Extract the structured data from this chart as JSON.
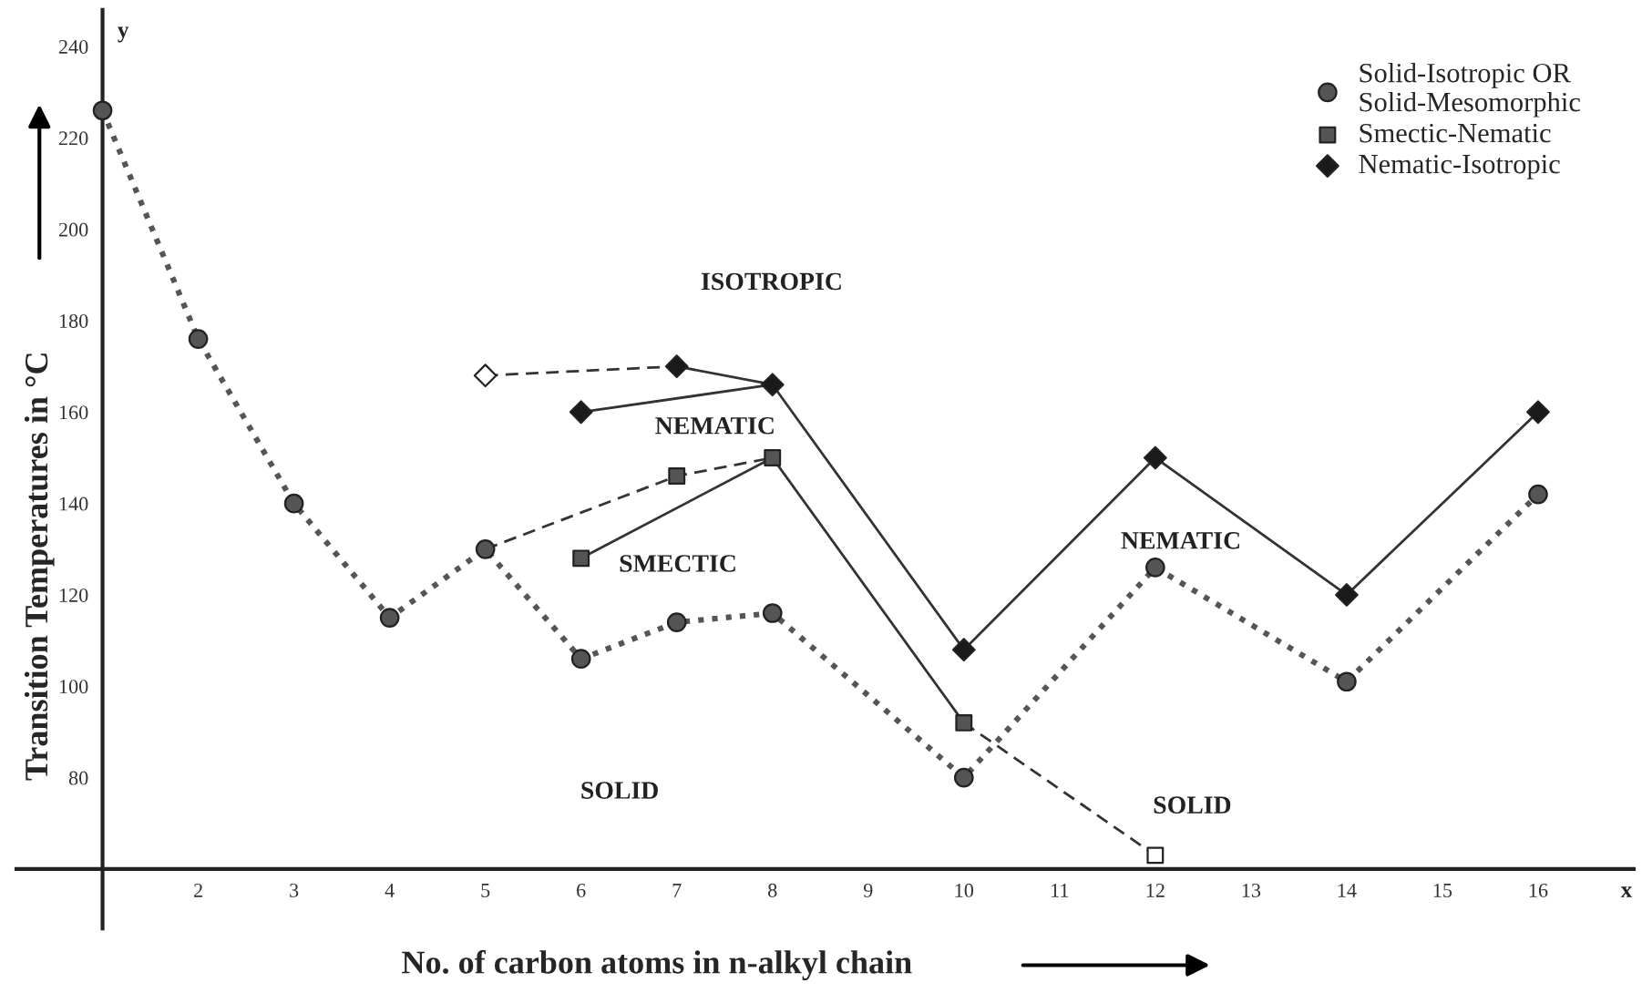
{
  "chart_data": {
    "type": "line",
    "xlabel": "No. of carbon atoms in n-alkyl chain",
    "ylabel": "Transition Temperatures in °C",
    "xlim": [
      0.1,
      17.0
    ],
    "ylim": [
      47,
      248
    ],
    "xticks": [
      {
        "value": 1,
        "label": null
      },
      2,
      3,
      4,
      5,
      6,
      7,
      8,
      9,
      10,
      11,
      12,
      13,
      14,
      15,
      16
    ],
    "yticks": [
      {
        "value": 60,
        "label": null
      },
      80,
      100,
      120,
      140,
      160,
      180,
      200,
      220,
      240
    ],
    "grid": false,
    "legend": "top right",
    "series": [
      {
        "name": "Solid-Isotropic OR\nSolid-Mesomorphic",
        "color": "#555555",
        "marker": "circle",
        "line_style": "dotted",
        "x": [
          1,
          2,
          3,
          4,
          5,
          6,
          7,
          8,
          10,
          12,
          14,
          16
        ],
        "values": [
          226,
          176,
          140,
          115,
          130,
          106,
          114,
          116,
          80,
          126,
          101,
          142
        ]
      },
      {
        "name": "Smectic-Nematic",
        "type": "scatter",
        "color": "#555555",
        "marker": "square",
        "x": [
          6,
          7,
          8,
          10
        ],
        "values": [
          128,
          146,
          150,
          92
        ]
      },
      {
        "name": "Nematic-Isotropic",
        "type": "scatter",
        "color": "#1a1a1a",
        "marker": "diamond",
        "x": [
          6,
          7,
          8,
          10,
          12,
          14,
          16
        ],
        "values": [
          160,
          170,
          166,
          108,
          150,
          120,
          160
        ]
      },
      {
        "type": "line",
        "color": "#333333",
        "marker": "none",
        "line_style": "solid",
        "x": [
          6,
          8,
          10
        ],
        "values": [
          128,
          150,
          92
        ]
      },
      {
        "type": "line",
        "color": "#333333",
        "marker": "none",
        "line_style": "dashed",
        "x": [
          5,
          7,
          8
        ],
        "values": [
          130,
          146,
          150
        ]
      },
      {
        "type": "line",
        "color": "#333333",
        "marker": "none",
        "line_style": "dashed",
        "x": [
          10,
          12
        ],
        "values": [
          92,
          63
        ]
      },
      {
        "type": "line",
        "color": "#333333",
        "marker": "none",
        "line_style": "solid",
        "x": [
          6,
          8,
          10,
          12,
          14,
          16
        ],
        "values": [
          160,
          166,
          108,
          150,
          120,
          160
        ]
      },
      {
        "type": "line",
        "color": "#333333",
        "marker": "none",
        "line_style": "solid",
        "x": [
          7,
          8
        ],
        "values": [
          170,
          166
        ]
      },
      {
        "type": "line",
        "color": "#333333",
        "marker": "none",
        "line_style": "dashed",
        "x": [
          5,
          7
        ],
        "values": [
          168,
          170
        ]
      },
      {
        "type": "scatter",
        "color": "#ffffff",
        "marker": "diamond",
        "x": [
          5
        ],
        "values": [
          168
        ]
      },
      {
        "type": "scatter",
        "color": "#ffffff",
        "marker": "square",
        "x": [
          12
        ],
        "values": [
          63
        ]
      }
    ],
    "annotations": [
      "ISOTROPIC",
      "NEMATIC",
      "SMECTIC",
      "SOLID",
      "NEMATIC",
      "SOLID",
      "y",
      "x"
    ]
  }
}
